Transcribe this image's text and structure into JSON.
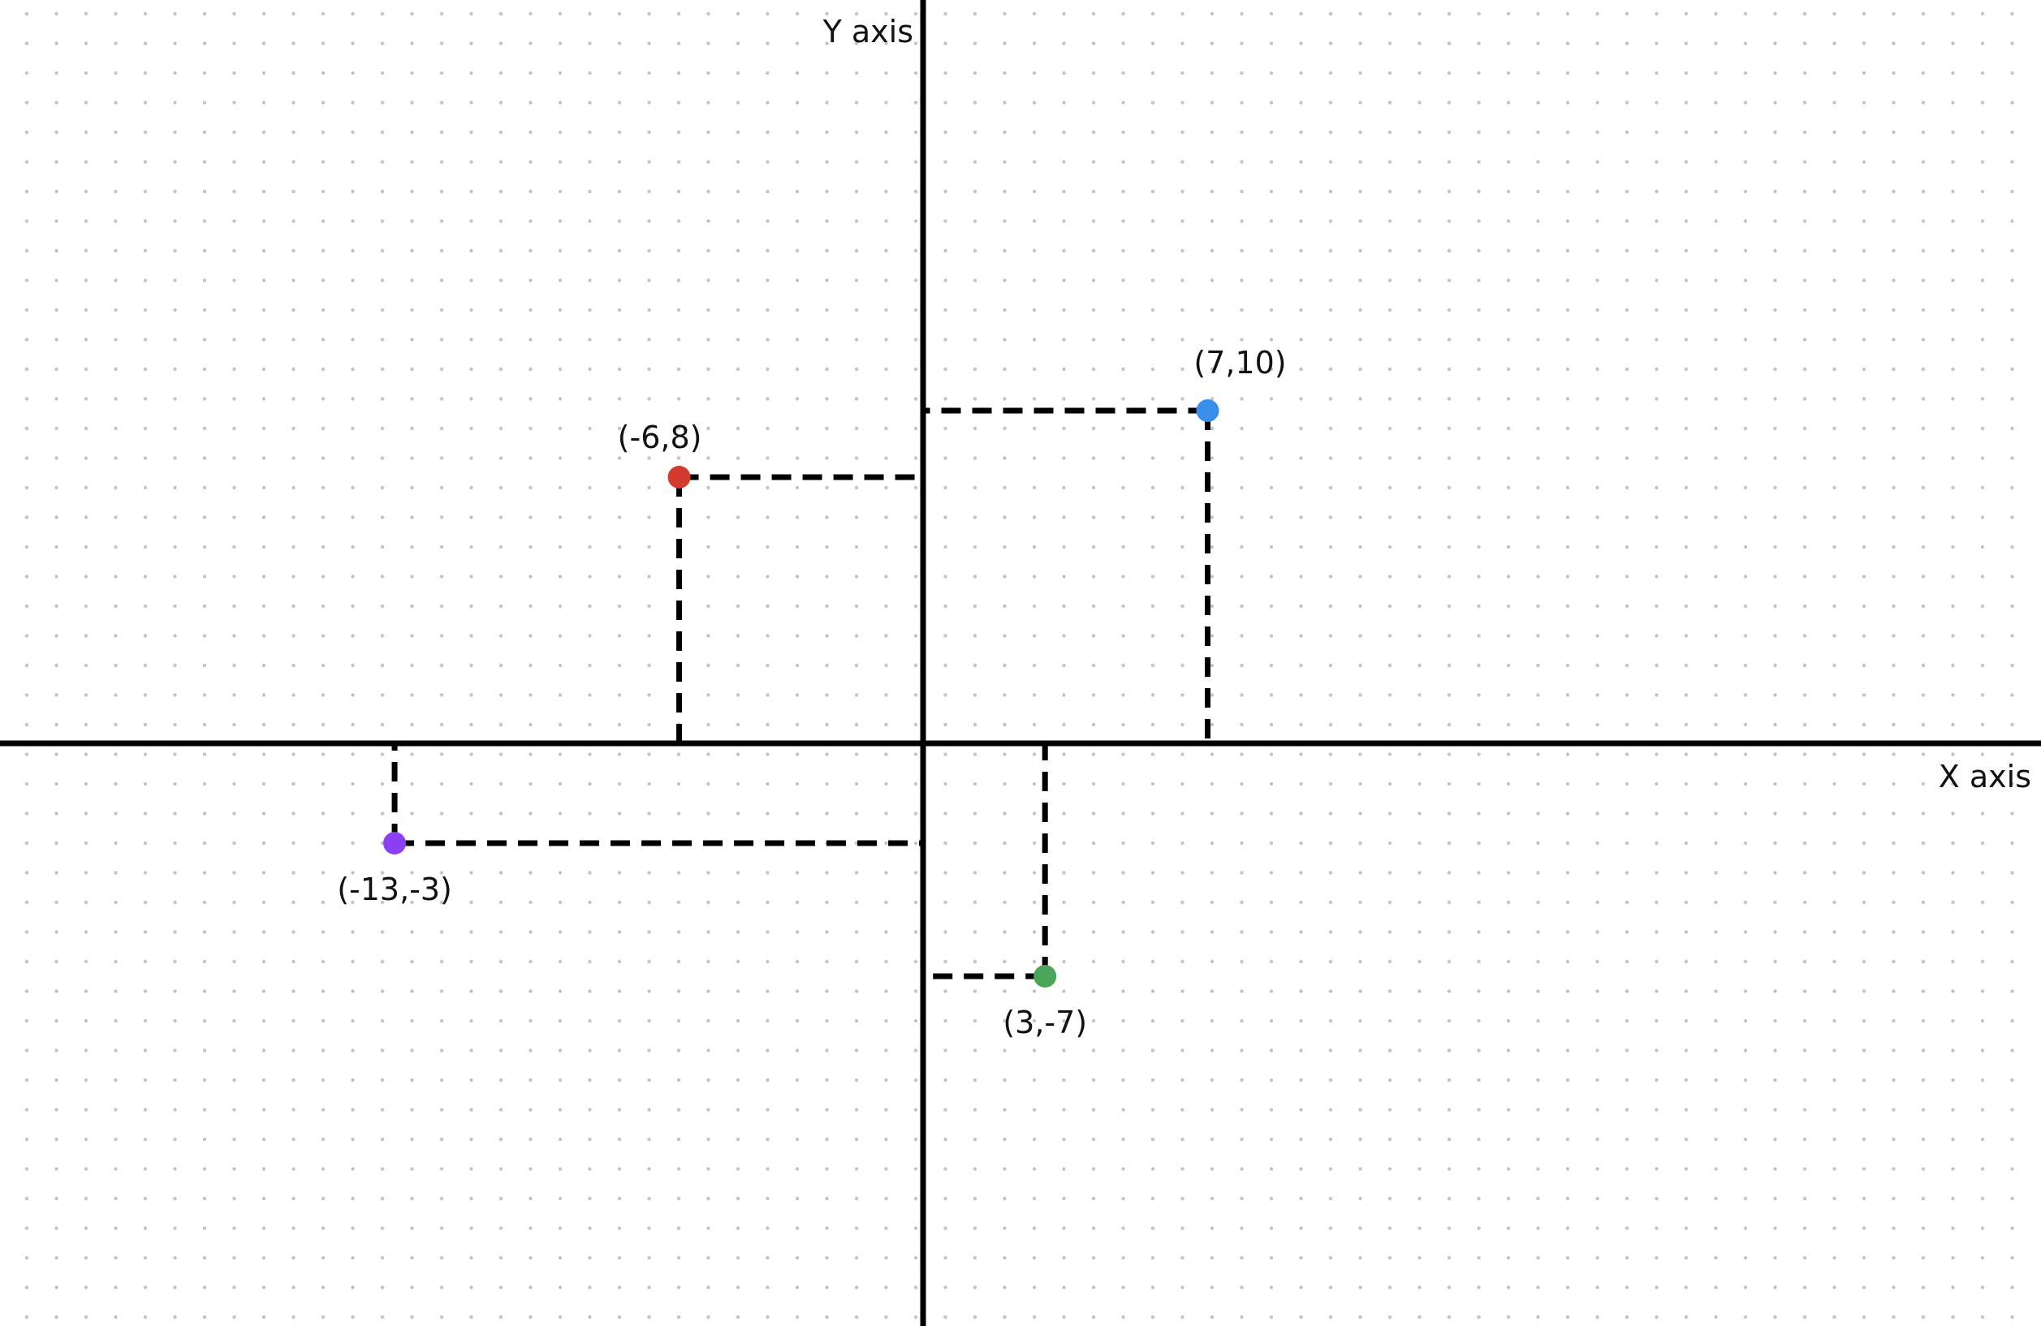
{
  "chart_data": {
    "type": "scatter",
    "title": "",
    "xlabel": "X axis",
    "ylabel": "Y axis",
    "grid": "dotted",
    "xlim": [
      -27.5,
      27.5
    ],
    "ylim": [
      -16.7,
      20
    ],
    "points": [
      {
        "x": 7,
        "y": 10,
        "label": "(7,10)",
        "color": "#3b8fe8",
        "label_position": "above-right"
      },
      {
        "x": -6,
        "y": 8,
        "label": "(-6,8)",
        "color": "#d23a2d",
        "label_position": "above-left"
      },
      {
        "x": -13,
        "y": -3,
        "label": "(-13,-3)",
        "color": "#8a3ff0",
        "label_position": "below"
      },
      {
        "x": 3,
        "y": -7,
        "label": "(3,-7)",
        "color": "#4aa55a",
        "label_position": "below"
      }
    ],
    "projection_lines": "dashed",
    "axis_color": "#000000",
    "grid_color": "#c4c4c4"
  }
}
